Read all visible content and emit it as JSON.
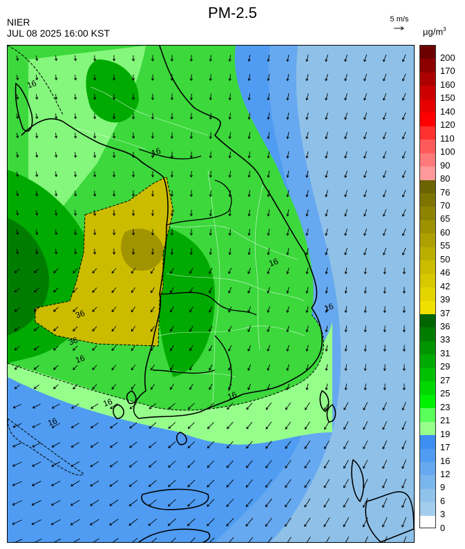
{
  "header": {
    "title": "PM-2.5",
    "org": "NIER",
    "datetime": "JUL 08 2025 16:00 KST",
    "wind_key": "5 m/s",
    "unit_base": "μg/m",
    "unit_exp": "3"
  },
  "legend": {
    "levels": [
      {
        "label": "200",
        "color": "#6b0000"
      },
      {
        "label": "170",
        "color": "#8c0000"
      },
      {
        "label": "160",
        "color": "#ad0000"
      },
      {
        "label": "150",
        "color": "#cc0000"
      },
      {
        "label": "140",
        "color": "#e60000"
      },
      {
        "label": "120",
        "color": "#ff0000"
      },
      {
        "label": "110",
        "color": "#ff3030"
      },
      {
        "label": "100",
        "color": "#ff5a5a"
      },
      {
        "label": "90",
        "color": "#ff7a7a"
      },
      {
        "label": "80",
        "color": "#ff9999"
      },
      {
        "label": "76",
        "color": "#6b6400"
      },
      {
        "label": "70",
        "color": "#7d7400"
      },
      {
        "label": "65",
        "color": "#8e8300"
      },
      {
        "label": "60",
        "color": "#9e9200"
      },
      {
        "label": "55",
        "color": "#ada000"
      },
      {
        "label": "50",
        "color": "#bcae00"
      },
      {
        "label": "46",
        "color": "#cbbc00"
      },
      {
        "label": "42",
        "color": "#d8c800"
      },
      {
        "label": "39",
        "color": "#e4d400"
      },
      {
        "label": "37",
        "color": "#f0e000"
      },
      {
        "label": "36",
        "color": "#006400"
      },
      {
        "label": "33",
        "color": "#007d00"
      },
      {
        "label": "31",
        "color": "#009400"
      },
      {
        "label": "29",
        "color": "#00aa00"
      },
      {
        "label": "27",
        "color": "#00c000"
      },
      {
        "label": "25",
        "color": "#00d800"
      },
      {
        "label": "23",
        "color": "#00f000"
      },
      {
        "label": "21",
        "color": "#5aff5a"
      },
      {
        "label": "19",
        "color": "#96ff8c"
      },
      {
        "label": "17",
        "color": "#3d8ef0"
      },
      {
        "label": "16",
        "color": "#4f9cf2"
      },
      {
        "label": "12",
        "color": "#66a9f0"
      },
      {
        "label": "9",
        "color": "#7ab6ee"
      },
      {
        "label": "6",
        "color": "#8fc3ec"
      },
      {
        "label": "3",
        "color": "#a3cdec"
      },
      {
        "label": "0",
        "color": ""
      }
    ]
  },
  "map": {
    "contour_labels": [
      "16",
      "36",
      "36",
      "16",
      "16",
      "16",
      "16",
      "16",
      "16",
      "16"
    ],
    "colors": {
      "sea_far": "#8fc1e8",
      "sea_near": "#4f9cf2",
      "sea_mid": "#66a9f0",
      "green_light": "#96ff8c",
      "green_mid": "#3cd83c",
      "green_dark": "#00aa00",
      "green_deep": "#007d00",
      "yellow": "#cbbc00",
      "yellow_dark": "#a09400",
      "coast": "#000000",
      "admin": "#ffffff",
      "arrow": "#000000"
    }
  }
}
